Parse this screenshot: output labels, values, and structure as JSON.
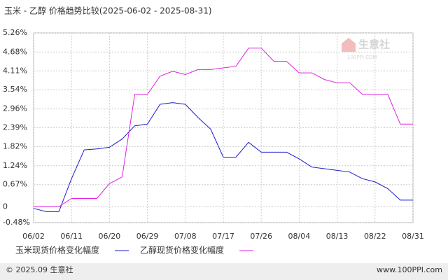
{
  "chart_data": {
    "type": "line",
    "title": "玉米 - 乙醇 价格趋势比较(2025-06-02 - 2025-08-31)",
    "categories": [
      "06/02",
      null,
      null,
      "06/11",
      null,
      null,
      "06/20",
      null,
      null,
      "06/29",
      null,
      null,
      "07/08",
      null,
      null,
      "07/17",
      null,
      null,
      "07/26",
      null,
      null,
      "08/04",
      null,
      null,
      "08/13",
      null,
      null,
      "08/22",
      null,
      null,
      "08/31"
    ],
    "series": [
      {
        "name": "玉米现货价格变化幅度",
        "color": "#1a1acc",
        "values": [
          -0.05,
          -0.15,
          -0.15,
          0.85,
          1.72,
          1.75,
          1.8,
          2.05,
          2.45,
          2.5,
          3.1,
          3.15,
          3.1,
          2.7,
          2.35,
          1.5,
          1.5,
          1.95,
          1.65,
          1.65,
          1.65,
          1.45,
          1.2,
          1.15,
          1.1,
          1.05,
          0.85,
          0.75,
          0.55,
          0.2,
          0.2
        ]
      },
      {
        "name": "乙醇现货价格变化幅度",
        "color": "#e020e0",
        "values": [
          0,
          0,
          0,
          0.25,
          0.25,
          0.25,
          0.7,
          0.9,
          3.4,
          3.4,
          3.95,
          4.1,
          4.0,
          4.15,
          4.15,
          4.2,
          4.25,
          4.8,
          4.8,
          4.4,
          4.4,
          4.05,
          4.05,
          3.85,
          3.75,
          3.75,
          3.4,
          3.4,
          3.4,
          2.5,
          2.5
        ]
      }
    ],
    "ylim": [
      -0.48,
      5.26
    ],
    "yticks": [
      {
        "value": -0.48,
        "label": "-0.48%"
      },
      0,
      {
        "value": 0.67,
        "label": "0.67%"
      },
      {
        "value": 1.24,
        "label": "1.24%"
      },
      {
        "value": 1.82,
        "label": "1.82%"
      },
      {
        "value": 2.39,
        "label": "2.39%"
      },
      {
        "value": 2.96,
        "label": "2.96%"
      },
      {
        "value": 3.54,
        "label": "3.54%"
      },
      {
        "value": 4.11,
        "label": "4.11%"
      },
      {
        "value": 4.68,
        "label": "4.68%"
      },
      {
        "value": 5.26,
        "label": "5.26%"
      }
    ],
    "grid": true,
    "watermark": "生意社",
    "watermark_sub": "100PPI.COM",
    "footer_left": "© 2025.09 生意社",
    "footer_right": "www.100PPI.com"
  }
}
